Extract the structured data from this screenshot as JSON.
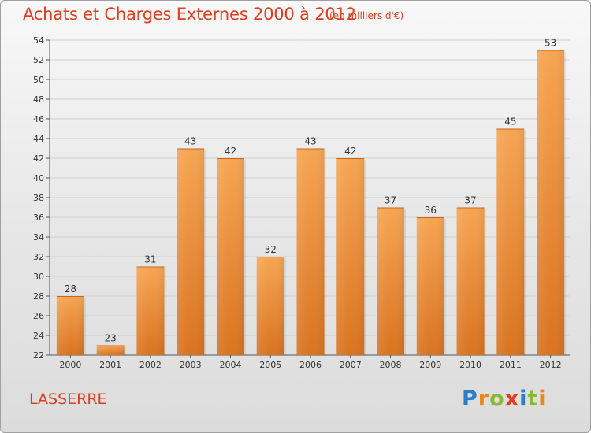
{
  "header": {
    "title": "Achats et Charges Externes 2000 à 2012",
    "subtitle": "(en milliers d'€)"
  },
  "footer": {
    "commune": "LASSERRE",
    "logo_text": "Proxiti",
    "logo_colors": [
      "#2a7dc9",
      "#e8871e",
      "#8ab832",
      "#e03c1e",
      "#2a7dc9",
      "#8ab832",
      "#e8871e"
    ]
  },
  "colors": {
    "accent": "#e03c1e",
    "bar_top": "#f6a553",
    "bar_bottom": "#d9731f",
    "grid": "#d0d0d0"
  },
  "chart_data": {
    "type": "bar",
    "categories": [
      "2000",
      "2001",
      "2002",
      "2003",
      "2004",
      "2005",
      "2006",
      "2007",
      "2008",
      "2009",
      "2010",
      "2011",
      "2012"
    ],
    "values": [
      28,
      23,
      31,
      43,
      42,
      32,
      43,
      42,
      37,
      36,
      37,
      45,
      53
    ],
    "title": "Achats et Charges Externes 2000 à 2012",
    "subtitle": "(en milliers d'€)",
    "xlabel": "",
    "ylabel": "",
    "ylim": [
      22,
      54
    ],
    "yticks": [
      22,
      24,
      26,
      28,
      30,
      32,
      34,
      36,
      38,
      40,
      42,
      44,
      46,
      48,
      50,
      52,
      54
    ],
    "grid": true,
    "data_labels": true
  }
}
